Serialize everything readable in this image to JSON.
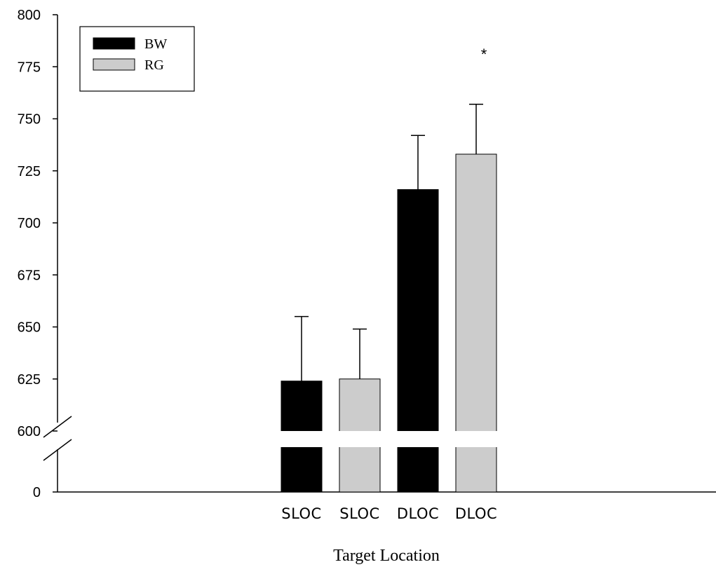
{
  "chart_data": {
    "type": "bar",
    "categories": [
      "SLOC",
      "SLOC",
      "DLOC",
      "DLOC"
    ],
    "series": [
      {
        "name": "BW",
        "color": "#000000",
        "bars": [
          {
            "category_index": 0,
            "value": 624,
            "error": 31
          },
          {
            "category_index": 2,
            "value": 716,
            "error": 26
          }
        ]
      },
      {
        "name": "RG",
        "color": "#cccccc",
        "bars": [
          {
            "category_index": 1,
            "value": 625,
            "error": 24
          },
          {
            "category_index": 3,
            "value": 733,
            "error": 24
          }
        ]
      }
    ],
    "y_ticks": [
      "0",
      "600",
      "625",
      "650",
      "675",
      "700",
      "725",
      "750",
      "775",
      "800"
    ],
    "ylim": [
      600,
      800
    ],
    "y_axis_break": {
      "below": 600,
      "baseline": 0
    },
    "xlabel": "Target Location",
    "ylabel": "",
    "title": "",
    "legend": {
      "placement": "top-left",
      "entries": [
        "BW",
        "RG"
      ]
    },
    "annotations": [
      {
        "text": "*",
        "category_index": 3
      }
    ],
    "grid": false
  }
}
